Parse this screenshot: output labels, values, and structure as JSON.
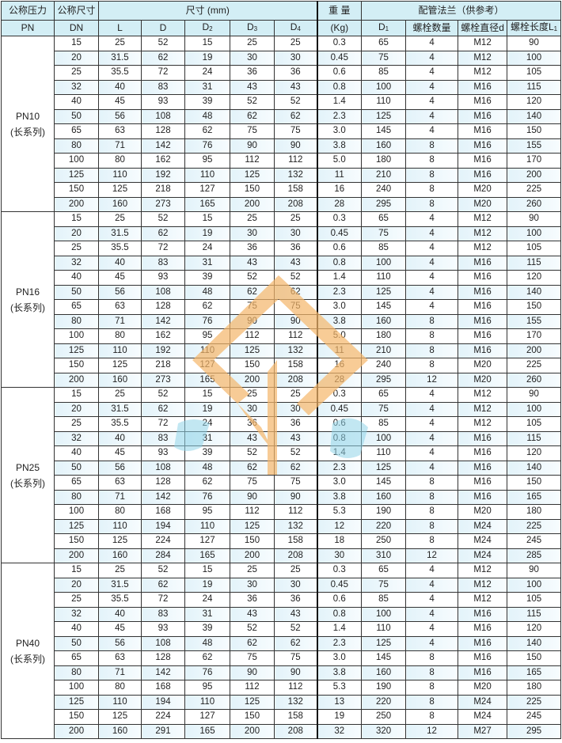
{
  "header": {
    "pn_label": "公称压力",
    "pn_sub": "PN",
    "dn_label": "公称尺寸",
    "dn_sub": "DN",
    "dims_label": "尺寸 (mm)",
    "weight_label": "重 量",
    "weight_unit": "(Kg)",
    "flange_label": "配管法兰（供参考）",
    "columns": [
      "L",
      "D",
      "D",
      "D",
      "D"
    ],
    "column_subs": [
      "",
      "",
      "2",
      "3",
      "4"
    ],
    "d1": "D",
    "d1_sub": "1",
    "bolt_count": "螺栓数量",
    "bolt_dia": "螺栓直径d",
    "bolt_len": "螺栓长度L",
    "bolt_len_sub": "1"
  },
  "watermark": {
    "colors": {
      "logo": "#f5b66a",
      "text": "#8fd3e8"
    }
  },
  "colors": {
    "header_bg": "#d3eef5",
    "stripe": "#e3f3fa"
  },
  "groups": [
    {
      "pn": "PN10",
      "series": "(长系列)",
      "rows": [
        [
          "15",
          "25",
          "52",
          "15",
          "25",
          "25",
          "0.3",
          "65",
          "4",
          "M12",
          "90"
        ],
        [
          "20",
          "31.5",
          "62",
          "19",
          "30",
          "30",
          "0.45",
          "75",
          "4",
          "M12",
          "100"
        ],
        [
          "25",
          "35.5",
          "72",
          "24",
          "36",
          "36",
          "0.6",
          "85",
          "4",
          "M12",
          "105"
        ],
        [
          "32",
          "40",
          "83",
          "31",
          "43",
          "43",
          "0.8",
          "100",
          "4",
          "M16",
          "115"
        ],
        [
          "40",
          "45",
          "93",
          "39",
          "52",
          "52",
          "1.4",
          "110",
          "4",
          "M16",
          "120"
        ],
        [
          "50",
          "56",
          "108",
          "48",
          "62",
          "62",
          "2.3",
          "125",
          "4",
          "M16",
          "140"
        ],
        [
          "65",
          "63",
          "128",
          "62",
          "75",
          "75",
          "3.0",
          "145",
          "4",
          "M16",
          "150"
        ],
        [
          "80",
          "71",
          "142",
          "76",
          "90",
          "90",
          "3.8",
          "160",
          "8",
          "M16",
          "155"
        ],
        [
          "100",
          "80",
          "162",
          "95",
          "112",
          "112",
          "5.0",
          "180",
          "8",
          "M16",
          "170"
        ],
        [
          "125",
          "110",
          "192",
          "110",
          "125",
          "132",
          "11",
          "210",
          "8",
          "M16",
          "200"
        ],
        [
          "150",
          "125",
          "218",
          "127",
          "150",
          "158",
          "16",
          "240",
          "8",
          "M20",
          "225"
        ],
        [
          "200",
          "160",
          "273",
          "165",
          "200",
          "208",
          "28",
          "295",
          "8",
          "M20",
          "260"
        ]
      ]
    },
    {
      "pn": "PN16",
      "series": "(长系列)",
      "rows": [
        [
          "15",
          "25",
          "52",
          "15",
          "25",
          "25",
          "0.3",
          "65",
          "4",
          "M12",
          "90"
        ],
        [
          "20",
          "31.5",
          "62",
          "19",
          "30",
          "30",
          "0.45",
          "75",
          "4",
          "M12",
          "100"
        ],
        [
          "25",
          "35.5",
          "72",
          "24",
          "36",
          "36",
          "0.6",
          "85",
          "4",
          "M12",
          "105"
        ],
        [
          "32",
          "40",
          "83",
          "31",
          "43",
          "43",
          "0.8",
          "100",
          "4",
          "M16",
          "115"
        ],
        [
          "40",
          "45",
          "93",
          "39",
          "52",
          "52",
          "1.4",
          "110",
          "4",
          "M16",
          "120"
        ],
        [
          "50",
          "56",
          "108",
          "48",
          "62",
          "62",
          "2.3",
          "125",
          "4",
          "M16",
          "140"
        ],
        [
          "65",
          "63",
          "128",
          "62",
          "75",
          "75",
          "3.0",
          "145",
          "4",
          "M16",
          "150"
        ],
        [
          "80",
          "71",
          "142",
          "76",
          "90",
          "90",
          "3.8",
          "160",
          "8",
          "M16",
          "155"
        ],
        [
          "100",
          "80",
          "162",
          "95",
          "112",
          "112",
          "5.0",
          "180",
          "8",
          "M16",
          "170"
        ],
        [
          "125",
          "110",
          "192",
          "110",
          "125",
          "132",
          "11",
          "210",
          "8",
          "M16",
          "200"
        ],
        [
          "150",
          "125",
          "218",
          "127",
          "150",
          "158",
          "16",
          "240",
          "8",
          "M20",
          "225"
        ],
        [
          "200",
          "160",
          "273",
          "165",
          "200",
          "208",
          "28",
          "295",
          "12",
          "M20",
          "260"
        ]
      ]
    },
    {
      "pn": "PN25",
      "series": "(长系列)",
      "rows": [
        [
          "15",
          "25",
          "52",
          "15",
          "25",
          "25",
          "0.3",
          "65",
          "4",
          "M12",
          "90"
        ],
        [
          "20",
          "31.5",
          "62",
          "19",
          "30",
          "30",
          "0.45",
          "75",
          "4",
          "M12",
          "100"
        ],
        [
          "25",
          "35.5",
          "72",
          "24",
          "36",
          "36",
          "0.6",
          "85",
          "4",
          "M12",
          "105"
        ],
        [
          "32",
          "40",
          "83",
          "31",
          "43",
          "43",
          "0.8",
          "100",
          "4",
          "M16",
          "115"
        ],
        [
          "40",
          "45",
          "93",
          "39",
          "52",
          "52",
          "1.4",
          "110",
          "4",
          "M16",
          "120"
        ],
        [
          "50",
          "56",
          "108",
          "48",
          "62",
          "62",
          "2.3",
          "125",
          "4",
          "M16",
          "140"
        ],
        [
          "65",
          "63",
          "128",
          "62",
          "75",
          "75",
          "3.0",
          "145",
          "8",
          "M16",
          "150"
        ],
        [
          "80",
          "71",
          "142",
          "76",
          "90",
          "90",
          "3.8",
          "160",
          "8",
          "M16",
          "165"
        ],
        [
          "100",
          "80",
          "168",
          "95",
          "112",
          "112",
          "5.3",
          "190",
          "8",
          "M20",
          "180"
        ],
        [
          "125",
          "110",
          "194",
          "110",
          "125",
          "132",
          "12",
          "220",
          "8",
          "M24",
          "225"
        ],
        [
          "150",
          "125",
          "224",
          "127",
          "150",
          "158",
          "18",
          "250",
          "8",
          "M24",
          "245"
        ],
        [
          "200",
          "160",
          "284",
          "165",
          "200",
          "208",
          "30",
          "310",
          "12",
          "M24",
          "285"
        ]
      ]
    },
    {
      "pn": "PN40",
      "series": "(长系列)",
      "rows": [
        [
          "15",
          "25",
          "52",
          "15",
          "25",
          "25",
          "0.3",
          "65",
          "4",
          "M12",
          "90"
        ],
        [
          "20",
          "31.5",
          "62",
          "19",
          "30",
          "30",
          "0.45",
          "75",
          "4",
          "M12",
          "100"
        ],
        [
          "25",
          "35.5",
          "72",
          "24",
          "36",
          "36",
          "0.6",
          "85",
          "4",
          "M12",
          "105"
        ],
        [
          "32",
          "40",
          "83",
          "31",
          "43",
          "43",
          "0.8",
          "100",
          "4",
          "M16",
          "115"
        ],
        [
          "40",
          "45",
          "93",
          "39",
          "52",
          "52",
          "1.4",
          "110",
          "4",
          "M16",
          "120"
        ],
        [
          "50",
          "56",
          "108",
          "48",
          "62",
          "62",
          "2.3",
          "125",
          "4",
          "M16",
          "140"
        ],
        [
          "65",
          "63",
          "128",
          "62",
          "75",
          "75",
          "3.0",
          "145",
          "8",
          "M16",
          "150"
        ],
        [
          "80",
          "71",
          "142",
          "76",
          "90",
          "90",
          "3.8",
          "160",
          "8",
          "M16",
          "165"
        ],
        [
          "100",
          "80",
          "168",
          "95",
          "112",
          "112",
          "5.3",
          "190",
          "8",
          "M20",
          "180"
        ],
        [
          "125",
          "110",
          "194",
          "110",
          "125",
          "132",
          "13",
          "220",
          "8",
          "M24",
          "225"
        ],
        [
          "150",
          "125",
          "224",
          "127",
          "150",
          "158",
          "19",
          "250",
          "8",
          "M24",
          "245"
        ],
        [
          "200",
          "160",
          "291",
          "165",
          "200",
          "208",
          "32",
          "320",
          "12",
          "M27",
          "295"
        ]
      ]
    }
  ]
}
